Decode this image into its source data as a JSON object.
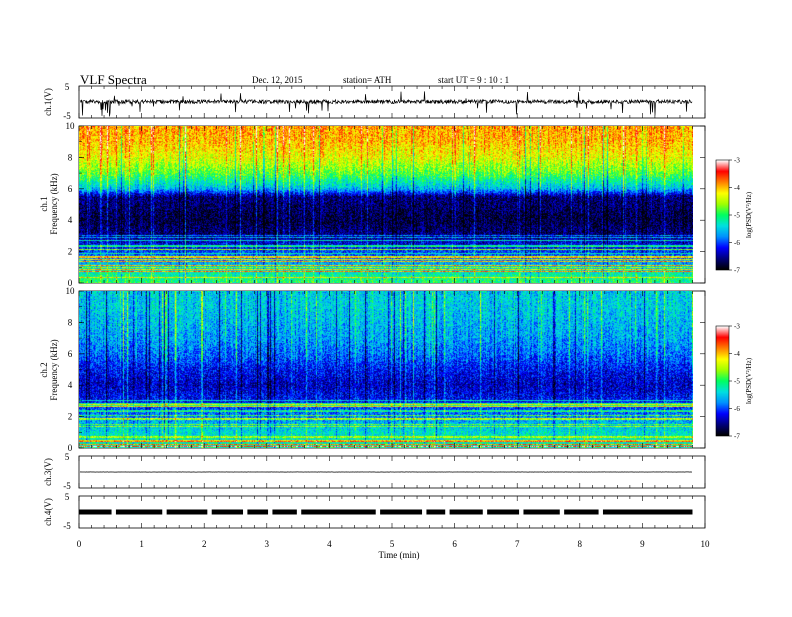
{
  "header": {
    "title": "VLF  Spectra",
    "date": "Dec. 12, 2015",
    "station": "station= ATH",
    "start": "start  UT  =    9  : 10 : 1"
  },
  "colors": {
    "colormap": [
      "#000000",
      "#00007a",
      "#0000ff",
      "#0090ff",
      "#00e0e0",
      "#00ff60",
      "#a0ff00",
      "#ffff00",
      "#ff8000",
      "#ff0000",
      "#ffffff"
    ],
    "waveform": "#000000",
    "bands": "#ffffff"
  },
  "chart_data": [
    {
      "type": "line",
      "id": "ch1-waveform",
      "ylabel": "ch.1(V)",
      "ylim": [
        -5,
        5
      ],
      "yticks": [
        "5",
        "-5"
      ],
      "xlim": [
        0,
        10
      ],
      "description_series": "broadband noise centered near 0.1 V with sharp negative spikes",
      "baseline": 0.1,
      "x_extent": [
        0,
        9.8
      ]
    },
    {
      "type": "heatmap",
      "id": "ch1-spectrogram",
      "ylabel": "ch.1\nFrequency  (kHz)",
      "ylim": [
        0,
        10
      ],
      "yticks": [
        "0",
        "2",
        "4",
        "6",
        "8",
        "10"
      ],
      "xlim": [
        0,
        10
      ],
      "x_extent": [
        0,
        9.8
      ],
      "colorbar": {
        "label": "log(PSD(V²/Hz)",
        "range": [
          -7,
          -3
        ],
        "ticks": [
          "-3",
          "-4",
          "-5",
          "-6",
          "-7"
        ]
      },
      "frequency_profile": [
        {
          "f": 0.0,
          "level": -5.0
        },
        {
          "f": 0.5,
          "level": -5.2
        },
        {
          "f": 1.5,
          "level": -5.8
        },
        {
          "f": 2.5,
          "level": -6.3
        },
        {
          "f": 3.0,
          "level": -6.6
        },
        {
          "f": 4.0,
          "level": -6.8
        },
        {
          "f": 5.5,
          "level": -6.6
        },
        {
          "f": 6.0,
          "level": -5.6
        },
        {
          "f": 7.0,
          "level": -4.8
        },
        {
          "f": 8.0,
          "level": -4.3
        },
        {
          "f": 9.0,
          "level": -4.0
        },
        {
          "f": 10.0,
          "level": -3.9
        }
      ]
    },
    {
      "type": "heatmap",
      "id": "ch2-spectrogram",
      "ylabel": "ch.2\nFrequency  (kHz)",
      "ylim": [
        0,
        10
      ],
      "yticks": [
        "0",
        "2",
        "4",
        "6",
        "8",
        "10"
      ],
      "xlim": [
        0,
        10
      ],
      "x_extent": [
        0,
        9.8
      ],
      "colorbar": {
        "label": "log(PSD(V²/Hz)",
        "range": [
          -7,
          -3
        ],
        "ticks": [
          "-3",
          "-4",
          "-5",
          "-6",
          "-7"
        ]
      },
      "frequency_profile": [
        {
          "f": 0.0,
          "level": -5.2
        },
        {
          "f": 1.0,
          "level": -5.4
        },
        {
          "f": 2.0,
          "level": -5.8
        },
        {
          "f": 3.0,
          "level": -6.2
        },
        {
          "f": 4.0,
          "level": -6.4
        },
        {
          "f": 5.0,
          "level": -6.2
        },
        {
          "f": 6.0,
          "level": -5.9
        },
        {
          "f": 7.0,
          "level": -5.7
        },
        {
          "f": 8.0,
          "level": -5.6
        },
        {
          "f": 9.0,
          "level": -5.5
        },
        {
          "f": 10.0,
          "level": -5.5
        }
      ]
    },
    {
      "type": "line",
      "id": "ch3-waveform",
      "ylabel": "ch.3(V)",
      "ylim": [
        -5,
        5
      ],
      "yticks": [
        "5",
        "-5"
      ],
      "xlim": [
        0,
        10
      ],
      "baseline": 0.0,
      "x_extent": [
        0,
        9.8
      ]
    },
    {
      "type": "line",
      "id": "ch4-waveform",
      "ylabel": "ch.4(V)",
      "ylim": [
        -5,
        5
      ],
      "yticks": [
        "5",
        "-5"
      ],
      "xlim": [
        0,
        10
      ],
      "baseline": 0.0,
      "x_extent": [
        0,
        9.8
      ],
      "gaps_min": [
        0.52,
        1.33,
        2.05,
        2.62,
        3.02,
        3.48,
        4.74,
        5.48,
        5.85,
        6.45,
        7.03,
        7.68,
        8.3
      ]
    }
  ],
  "xaxis": {
    "label": "Time  (min)",
    "ticks": [
      "0",
      "1",
      "2",
      "3",
      "4",
      "5",
      "6",
      "7",
      "8",
      "9",
      "10"
    ]
  }
}
